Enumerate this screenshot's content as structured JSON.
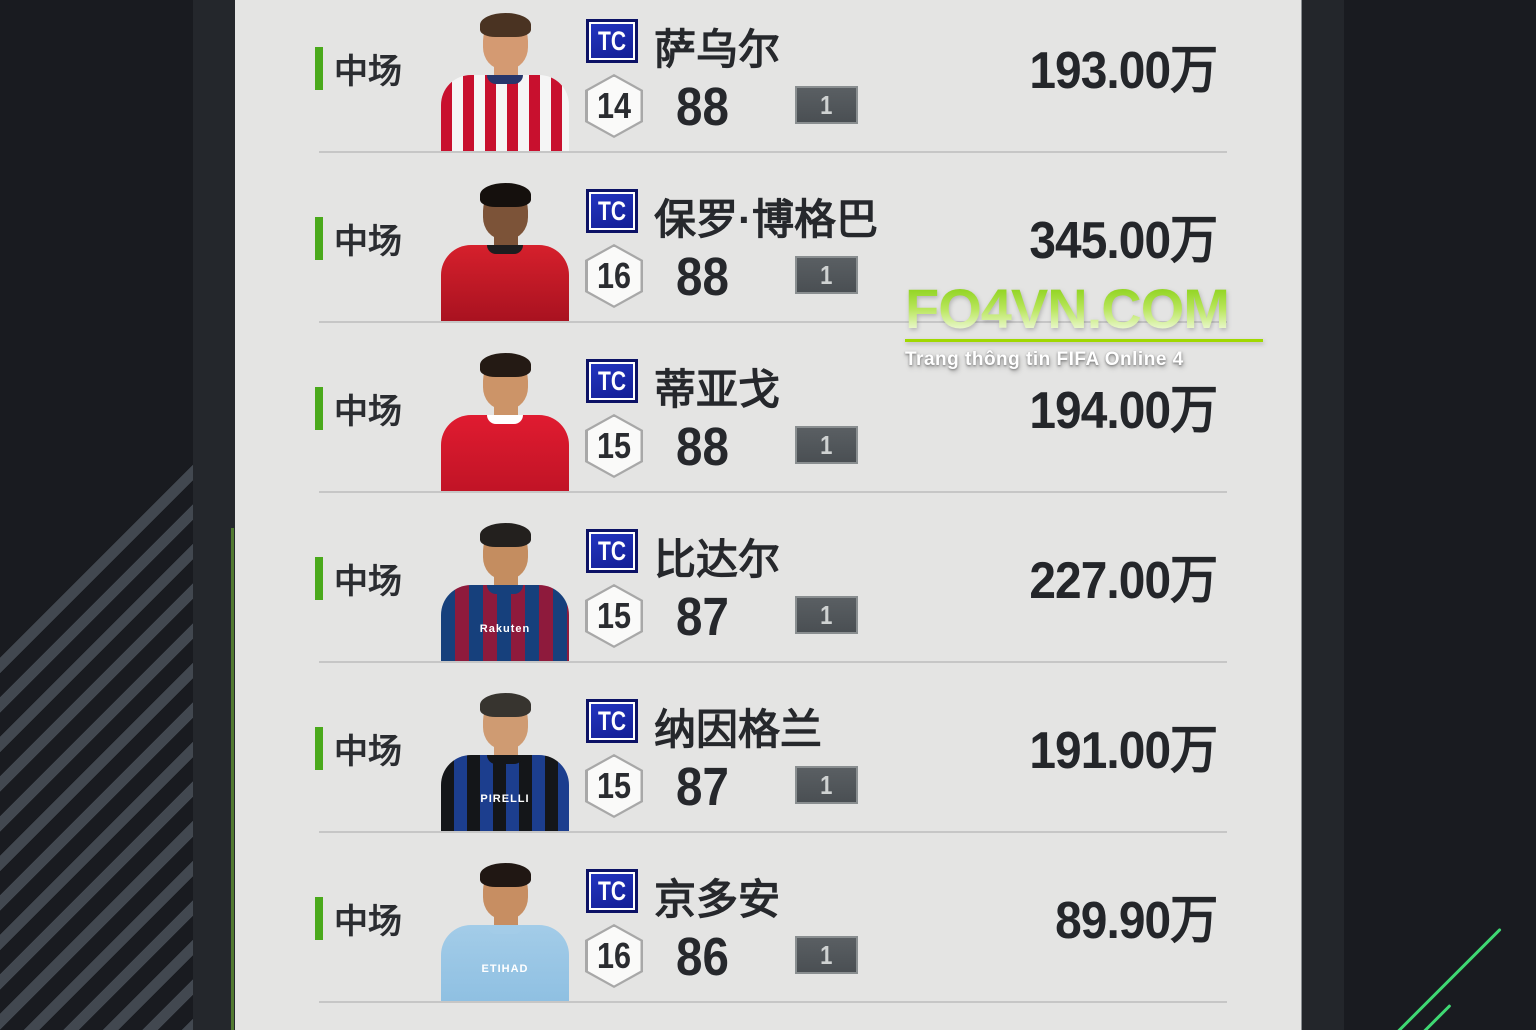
{
  "watermark": {
    "title": "FO4VN.COM",
    "subtitle": "Trang thông tin FIFA Online 4"
  },
  "colors": {
    "accent_green": "#4aa91c",
    "watermark_green": "#a0d800",
    "diagonal_line_green": "#3fd973",
    "panel_dark": "#191b20",
    "panel_strip": "#24272c",
    "content_bg": "#e4e4e3",
    "tc_badge_blue": "#1b2cb0",
    "text_dark": "#26282c"
  },
  "list": {
    "rows": [
      {
        "position": "中场",
        "tc_label": "TC",
        "name": "萨乌尔",
        "season": "14",
        "rating": "88",
        "salary": "1",
        "price": "193.00万",
        "jersey_text": "",
        "photo_style": "--jersey:repeating-linear-gradient(90deg,#c8102e 0 11px,#f5f5f5 11px 22px);--skin:#d49a72;--hair:#4a3322;--collar:#27366b"
      },
      {
        "position": "中场",
        "tc_label": "TC",
        "name": "保罗·博格巴",
        "season": "16",
        "rating": "88",
        "salary": "1",
        "price": "345.00万",
        "jersey_text": "",
        "photo_style": "--jersey:linear-gradient(180deg,#d6202c,#a91220);--skin:#7c5338;--hair:#15100d;--collar:#1d1d1f"
      },
      {
        "position": "中场",
        "tc_label": "TC",
        "name": "蒂亚戈",
        "season": "15",
        "rating": "88",
        "salary": "1",
        "price": "194.00万",
        "jersey_text": "",
        "photo_style": "--jersey:linear-gradient(180deg,#e01b30,#c11426);--skin:#cc9468;--hair:#241a14;--collar:#ffffff"
      },
      {
        "position": "中场",
        "tc_label": "TC",
        "name": "比达尔",
        "season": "15",
        "rating": "87",
        "salary": "1",
        "price": "227.00万",
        "jersey_text": "Rakuten",
        "photo_style": "--jersey:repeating-linear-gradient(90deg,#16407c 0 14px,#8e1a3c 14px 28px);--skin:#c48d60;--hair:#23201e;--collar:#16407c"
      },
      {
        "position": "中场",
        "tc_label": "TC",
        "name": "纳因格兰",
        "season": "15",
        "rating": "87",
        "salary": "1",
        "price": "191.00万",
        "jersey_text": "PIRELLI",
        "photo_style": "--jersey:repeating-linear-gradient(90deg,#141619 0 13px,#1c3e8e 13px 26px);--skin:#cf9b72;--hair:#37342f;--collar:#141619"
      },
      {
        "position": "中场",
        "tc_label": "TC",
        "name": "京多安",
        "season": "16",
        "rating": "86",
        "salary": "1",
        "price": "89.90万",
        "jersey_text": "ETIHAD",
        "photo_style": "--jersey:linear-gradient(180deg,#a3cce8,#8fc0e2);--skin:#c78e62;--hair:#201713;--collar:#a3cce8"
      }
    ]
  }
}
